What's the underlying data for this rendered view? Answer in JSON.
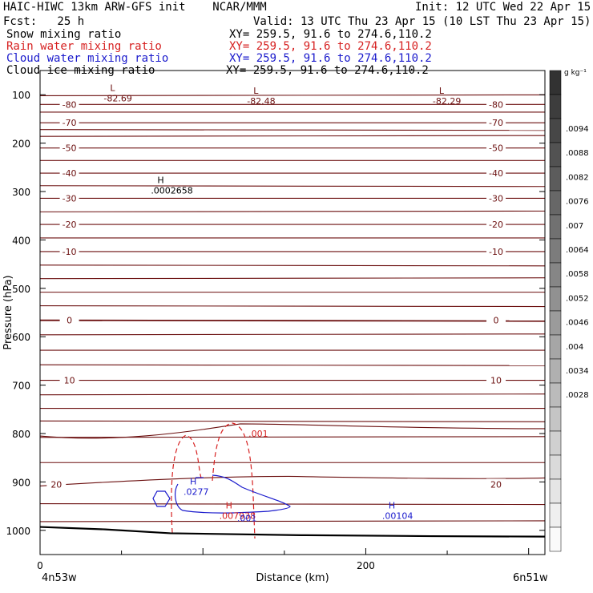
{
  "header": {
    "model_line": "HAIC-HIWC 13km ARW-GFS init    NCAR/MMM",
    "init_line": "Init: 12 UTC Wed 22 Apr 15",
    "fcst_line": "Fcst:   25 h",
    "valid_line": "Valid: 13 UTC Thu 23 Apr 15 (10 LST Thu 23 Apr 15)",
    "fields": [
      {
        "name": "Snow mixing ratio",
        "xy": "XY= 259.5, 91.6 to 274.6,110.2",
        "color": "#000000"
      },
      {
        "name": "Rain water mixing ratio",
        "xy": "XY= 259.5, 91.6 to 274.6,110.2",
        "color": "#d62020"
      },
      {
        "name": "Cloud water mixing ratio",
        "xy": "XY= 259.5, 91.6 to 274.6,110.2",
        "color": "#1a1acc"
      },
      {
        "name": "Cloud ice mixing ratio",
        "xy": "XY= 259.5, 91.6 to 274.6,110.2",
        "color": "#000000"
      }
    ]
  },
  "colors": {
    "temperature": "#6b0f0f",
    "rain": "#d62020",
    "cloud_water": "#1a1acc",
    "terrain": "#000000"
  },
  "chart_data": {
    "type": "line",
    "xlabel": "Distance (km)",
    "ylabel": "Pressure (hPa)",
    "x_ticks": [
      0,
      200
    ],
    "x_range": [
      0,
      310
    ],
    "y_ticks": [
      100,
      200,
      300,
      400,
      500,
      600,
      700,
      800,
      900,
      1000
    ],
    "y_range": [
      50,
      1050
    ],
    "left_location": "4n53w",
    "right_location": "6n51w",
    "colorbar": {
      "unit": "g kg⁻¹",
      "labels": [
        ".0094",
        ".0088",
        ".0082",
        ".0076",
        ".007",
        ".0064",
        ".0058",
        ".0052",
        ".0046",
        ".004",
        ".0034",
        ".0028"
      ]
    },
    "temperature_isotherms": [
      {
        "value": -80,
        "pressure": 120
      },
      {
        "value": -70,
        "pressure": 158
      },
      {
        "value": -50,
        "pressure": 210
      },
      {
        "value": -40,
        "pressure": 262
      },
      {
        "value": -30,
        "pressure": 314
      },
      {
        "value": -20,
        "pressure": 368
      },
      {
        "value": -10,
        "pressure": 424
      },
      {
        "value": 0,
        "pressure": 566
      },
      {
        "value": 10,
        "pressure": 690
      },
      {
        "value": 20,
        "pressure": 905
      }
    ],
    "extrema_labels": [
      {
        "label": "L",
        "value": "-82.69",
        "x": 43,
        "p": 92
      },
      {
        "label": "L",
        "value": "-82.48",
        "x": 131,
        "p": 98
      },
      {
        "label": "L",
        "value": "-82.29",
        "x": 245,
        "p": 98
      },
      {
        "label": "H",
        "value": ".0002658",
        "x": 72,
        "p": 283
      },
      {
        "label": "H",
        "value": ".0277",
        "x": 92,
        "p": 905
      },
      {
        "label": "H",
        "value": ".007938",
        "x": 114,
        "p": 955
      },
      {
        "label": "H",
        "value": ".00104",
        "x": 214,
        "p": 955
      }
    ],
    "rain_contour_label": {
      "value": ".001",
      "x": 128,
      "p": 800
    },
    "cloud_contour_label": {
      "value": ".001",
      "x": 121,
      "p": 975
    },
    "terrain_pressure": [
      [
        0,
        993
      ],
      [
        40,
        998
      ],
      [
        80,
        1006
      ],
      [
        160,
        1010
      ],
      [
        240,
        1012
      ],
      [
        310,
        1013
      ]
    ]
  }
}
